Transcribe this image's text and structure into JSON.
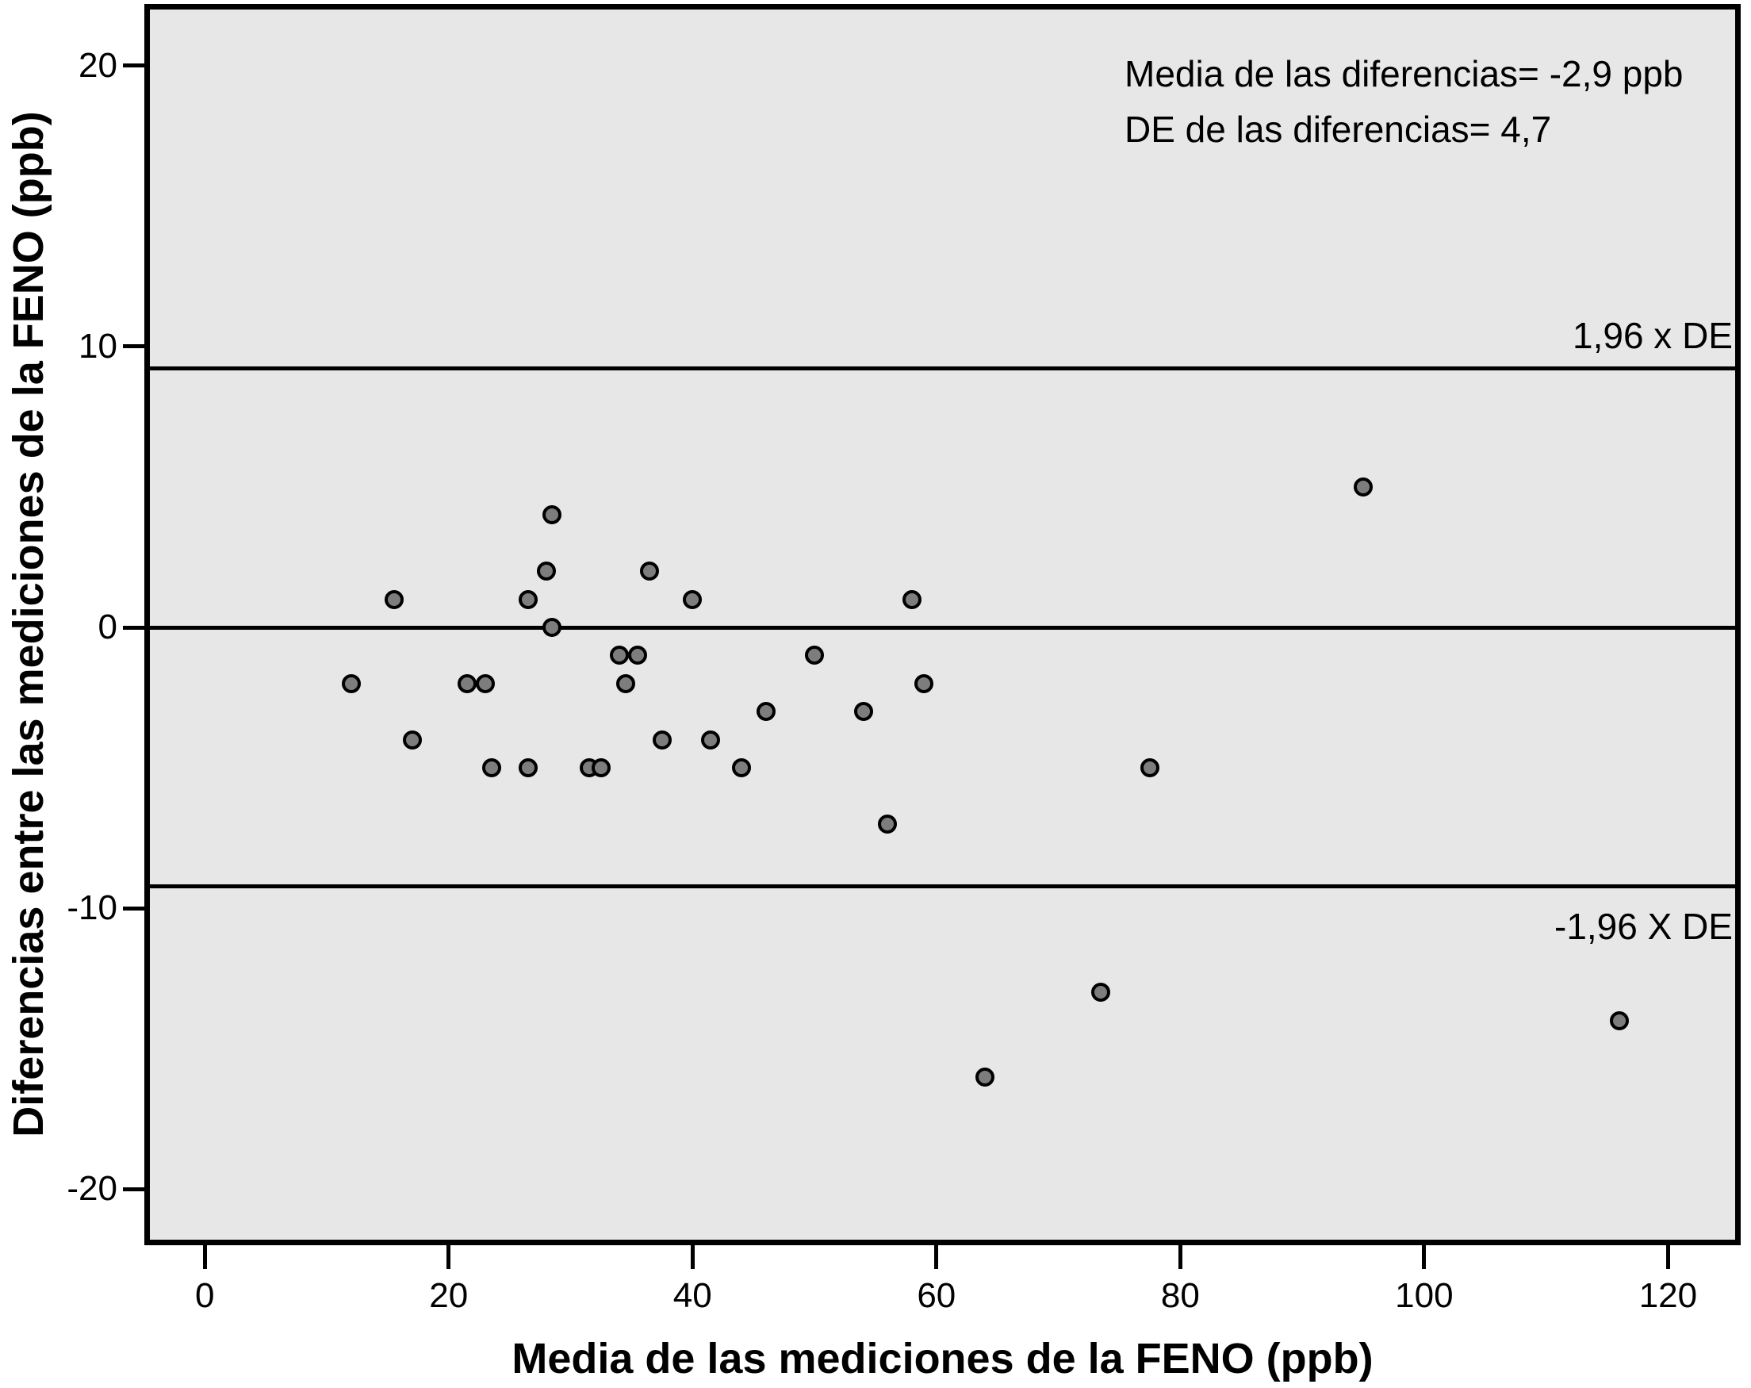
{
  "chart_data": {
    "type": "scatter",
    "xlabel": "Media de las mediciones de la FENO (ppb)",
    "ylabel": "Diferencias entre las mediciones de la FENO (ppb)",
    "annotation_lines": [
      "Media de las diferencias= -2,9 ppb",
      "DE de las diferencias= 4,7"
    ],
    "mean_diff": -2.9,
    "sd_diff": 4.7,
    "xlim": [
      -4.5,
      125.5
    ],
    "ylim": [
      -21.8,
      22.0
    ],
    "x_ticks": [
      0,
      20,
      40,
      60,
      80,
      100,
      120
    ],
    "x_tick_labels": [
      "0",
      "20",
      "40",
      "60",
      "80",
      "100",
      "120"
    ],
    "y_ticks": [
      20,
      10,
      0,
      -10,
      -20
    ],
    "y_tick_labels": [
      "20",
      "10",
      "0",
      "-10",
      "-20"
    ],
    "grid": false,
    "legend": "none",
    "reference_lines": [
      {
        "value": 9.21,
        "label": "1,96 x DE"
      },
      {
        "value": 0,
        "label": ""
      },
      {
        "value": -9.21,
        "label": "-1,96 X DE"
      }
    ],
    "points": [
      {
        "x": 12,
        "y": -2
      },
      {
        "x": 15.5,
        "y": 1
      },
      {
        "x": 17,
        "y": -4
      },
      {
        "x": 21.5,
        "y": -2
      },
      {
        "x": 23,
        "y": -2
      },
      {
        "x": 23.5,
        "y": -5
      },
      {
        "x": 26.5,
        "y": 1
      },
      {
        "x": 26.5,
        "y": -5
      },
      {
        "x": 28,
        "y": 2
      },
      {
        "x": 28.5,
        "y": 4
      },
      {
        "x": 28.5,
        "y": 0
      },
      {
        "x": 31.5,
        "y": -5
      },
      {
        "x": 32.5,
        "y": -5
      },
      {
        "x": 34,
        "y": -1
      },
      {
        "x": 34.5,
        "y": -2
      },
      {
        "x": 35.5,
        "y": -1
      },
      {
        "x": 36.5,
        "y": 2
      },
      {
        "x": 37.5,
        "y": -4
      },
      {
        "x": 40,
        "y": 1
      },
      {
        "x": 41.5,
        "y": -4
      },
      {
        "x": 44,
        "y": -5
      },
      {
        "x": 46,
        "y": -3
      },
      {
        "x": 50,
        "y": -1
      },
      {
        "x": 54,
        "y": -3
      },
      {
        "x": 56,
        "y": -7
      },
      {
        "x": 58,
        "y": 1
      },
      {
        "x": 59,
        "y": -2
      },
      {
        "x": 64,
        "y": -16
      },
      {
        "x": 73.5,
        "y": -13
      },
      {
        "x": 77.5,
        "y": -5
      },
      {
        "x": 95,
        "y": 5
      },
      {
        "x": 116,
        "y": -14
      }
    ],
    "colors": {
      "plot_bg": "#e7e7e7",
      "point_fill": "#7d7d7d",
      "point_stroke": "#000000",
      "line": "#000000"
    }
  }
}
